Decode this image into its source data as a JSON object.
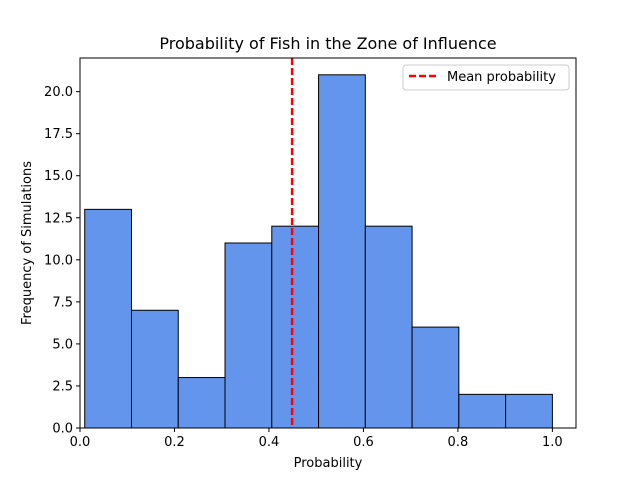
{
  "chart_data": {
    "type": "bar",
    "title": "Probability of Fish in the Zone of Influence",
    "xlabel": "Probability",
    "ylabel": "Frequency of Simulations",
    "xlim": [
      0.0,
      1.05
    ],
    "ylim": [
      0,
      22
    ],
    "x_ticks": [
      "0.0",
      "0.2",
      "0.4",
      "0.6",
      "0.8",
      "1.0"
    ],
    "x_tick_values": [
      0.0,
      0.2,
      0.4,
      0.6,
      0.8,
      1.0
    ],
    "y_ticks": [
      "0.0",
      "2.5",
      "5.0",
      "7.5",
      "10.0",
      "12.5",
      "15.0",
      "17.5",
      "20.0"
    ],
    "y_tick_values": [
      0.0,
      2.5,
      5.0,
      7.5,
      10.0,
      12.5,
      15.0,
      17.5,
      20.0
    ],
    "bin_edges": [
      0.01,
      0.109,
      0.208,
      0.307,
      0.406,
      0.505,
      0.604,
      0.703,
      0.802,
      0.901,
      1.0
    ],
    "values": [
      13,
      7,
      3,
      11,
      12,
      21,
      12,
      6,
      2,
      2
    ],
    "bar_color": "#6495ED",
    "bar_edge_color": "#000000",
    "mean_line": {
      "x": 0.449,
      "label": "Mean probability",
      "color": "#ff0000",
      "style": "dashed"
    },
    "legend": {
      "position": "top-right",
      "entries": [
        "Mean probability"
      ]
    },
    "grid": false
  }
}
